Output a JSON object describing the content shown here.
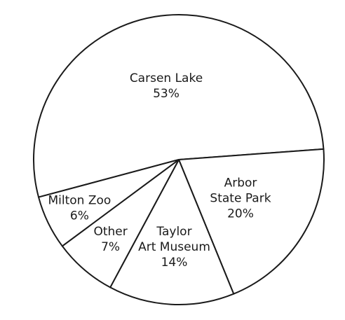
{
  "chart_data": {
    "type": "pie",
    "start_angle_deg": 195,
    "direction": "clockwise",
    "slices": [
      {
        "lines": [
          "Carsen Lake"
        ],
        "value_label": "53%",
        "value": 53
      },
      {
        "lines": [
          "Arbor",
          "State Park"
        ],
        "value_label": "20%",
        "value": 20
      },
      {
        "lines": [
          "Taylor",
          "Art Museum"
        ],
        "value_label": "14%",
        "value": 14
      },
      {
        "lines": [
          "Other"
        ],
        "value_label": "7%",
        "value": 7
      },
      {
        "lines": [
          "Milton Zoo"
        ],
        "value_label": "6%",
        "value": 6
      }
    ],
    "colors": {
      "fill": "#ffffff",
      "stroke": "#1a1a1a"
    }
  }
}
